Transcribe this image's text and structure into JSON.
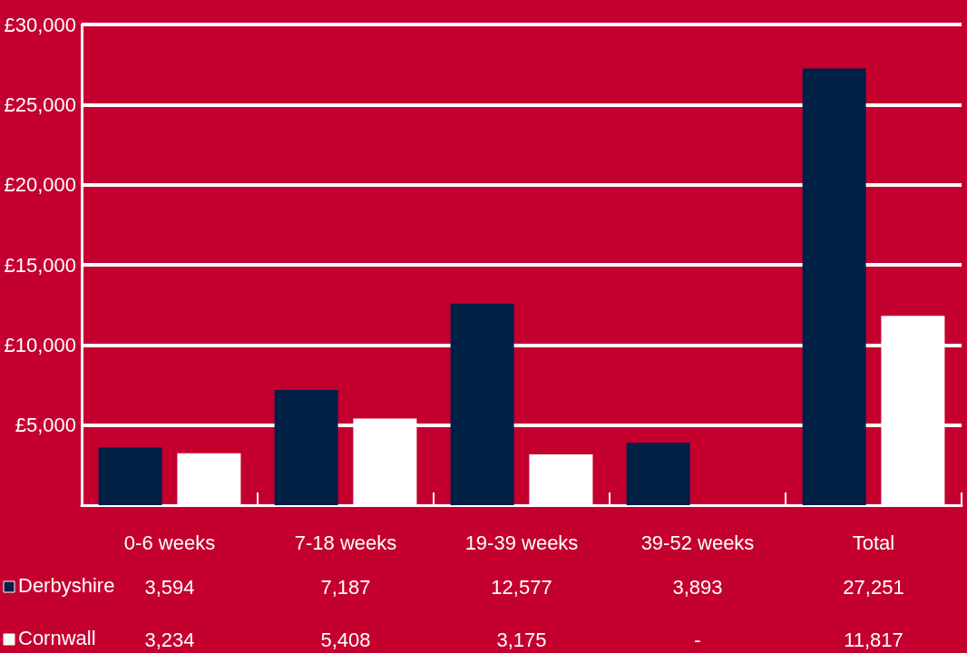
{
  "chart_data": {
    "type": "bar",
    "categories": [
      "0-6 weeks",
      "7-18 weeks",
      "19-39 weeks",
      "39-52 weeks",
      "Total"
    ],
    "series": [
      {
        "name": "Derbyshire",
        "color": "#001f45",
        "values": [
          3594,
          7187,
          12577,
          3893,
          27251
        ],
        "value_labels": [
          "3,594",
          "7,187",
          "12,577",
          "3,893",
          "27,251"
        ]
      },
      {
        "name": "Cornwall",
        "color": "#ffffff",
        "values": [
          3234,
          5408,
          3175,
          null,
          11817
        ],
        "value_labels": [
          "3,234",
          "5,408",
          "3,175",
          "-",
          "11,817"
        ]
      }
    ],
    "ylim": [
      0,
      30000
    ],
    "yticks": [
      {
        "value": 5000,
        "label": "£5,000"
      },
      {
        "value": 10000,
        "label": "£10,000"
      },
      {
        "value": 15000,
        "label": "£15,000"
      },
      {
        "value": 20000,
        "label": "£20,000"
      },
      {
        "value": 25000,
        "label": "£25,000"
      },
      {
        "value": 30000,
        "label": "£30,000"
      }
    ],
    "grid": "y",
    "legend": "bottom left"
  }
}
